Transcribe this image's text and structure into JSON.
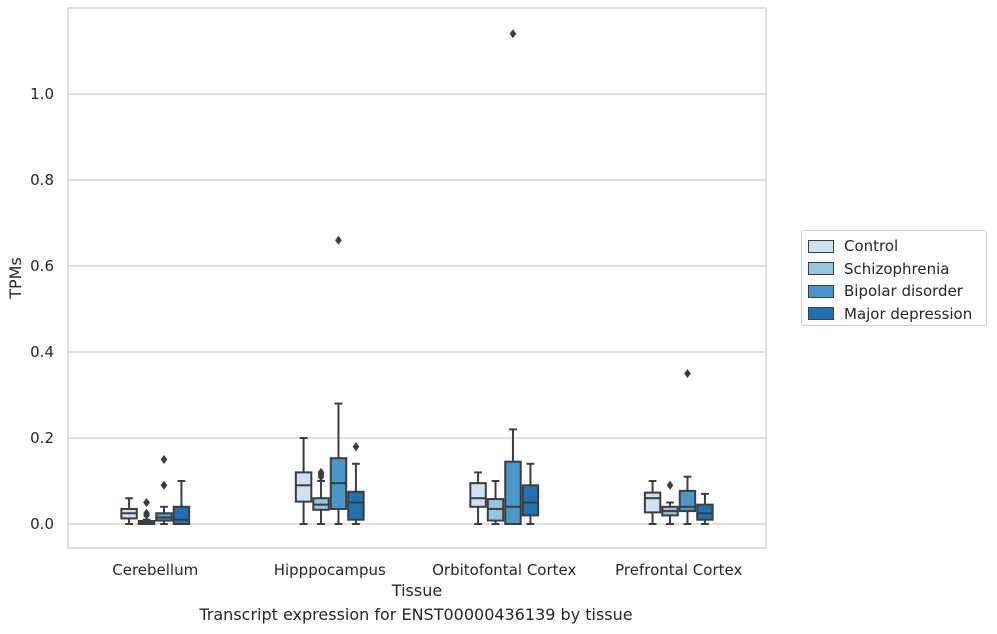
{
  "chart_data": {
    "type": "box",
    "caption": "Transcript expression for ENST00000436139 by tissue",
    "xlabel": "Tissue",
    "ylabel": "TPMs",
    "ylim": [
      -0.056,
      1.19
    ],
    "yticks": [
      0.0,
      0.2,
      0.4,
      0.6,
      0.8,
      1.0
    ],
    "ytick_labels": [
      "0.0",
      "0.2",
      "0.4",
      "0.6",
      "0.8",
      "1.0"
    ],
    "categories": [
      "Cerebellum",
      "Hipppocampus",
      "Orbitofontal Cortex",
      "Prefrontal Cortex"
    ],
    "grid": "horizontal",
    "legend_placement": "right",
    "series": [
      {
        "name": "Control",
        "color": "#d0e1f2",
        "boxes": [
          {
            "min": 0.0,
            "q1": 0.013,
            "median": 0.025,
            "q3": 0.035,
            "max": 0.06,
            "outliers": []
          },
          {
            "min": 0.0,
            "q1": 0.052,
            "median": 0.09,
            "q3": 0.12,
            "max": 0.2,
            "outliers": []
          },
          {
            "min": 0.0,
            "q1": 0.04,
            "median": 0.06,
            "q3": 0.095,
            "max": 0.12,
            "outliers": []
          },
          {
            "min": 0.0,
            "q1": 0.027,
            "median": 0.06,
            "q3": 0.073,
            "max": 0.1,
            "outliers": []
          }
        ]
      },
      {
        "name": "Schizophrenia",
        "color": "#94c4df",
        "boxes": [
          {
            "min": 0.0,
            "q1": 0.0,
            "median": 0.003,
            "q3": 0.007,
            "max": 0.01,
            "outliers": [
              0.05,
              0.025,
              0.02
            ]
          },
          {
            "min": 0.0,
            "q1": 0.033,
            "median": 0.045,
            "q3": 0.06,
            "max": 0.1,
            "outliers": [
              0.12,
              0.115,
              0.11
            ]
          },
          {
            "min": 0.0,
            "q1": 0.008,
            "median": 0.035,
            "q3": 0.058,
            "max": 0.1,
            "outliers": []
          },
          {
            "min": 0.0,
            "q1": 0.02,
            "median": 0.03,
            "q3": 0.04,
            "max": 0.05,
            "outliers": [
              0.09
            ]
          }
        ]
      },
      {
        "name": "Bipolar disorder",
        "color": "#4a98c9",
        "boxes": [
          {
            "min": 0.0,
            "q1": 0.008,
            "median": 0.015,
            "q3": 0.025,
            "max": 0.04,
            "outliers": [
              0.15,
              0.09
            ]
          },
          {
            "min": 0.0,
            "q1": 0.035,
            "median": 0.095,
            "q3": 0.153,
            "max": 0.28,
            "outliers": [
              0.66
            ]
          },
          {
            "min": 0.0,
            "q1": 0.0,
            "median": 0.04,
            "q3": 0.145,
            "max": 0.22,
            "outliers": [
              1.14
            ]
          },
          {
            "min": 0.0,
            "q1": 0.03,
            "median": 0.04,
            "q3": 0.077,
            "max": 0.11,
            "outliers": [
              0.35
            ]
          }
        ]
      },
      {
        "name": "Major depression",
        "color": "#2070b4",
        "boxes": [
          {
            "min": 0.0,
            "q1": 0.0,
            "median": 0.01,
            "q3": 0.04,
            "max": 0.1,
            "outliers": []
          },
          {
            "min": 0.0,
            "q1": 0.01,
            "median": 0.05,
            "q3": 0.075,
            "max": 0.14,
            "outliers": [
              0.18
            ]
          },
          {
            "min": 0.0,
            "q1": 0.02,
            "median": 0.05,
            "q3": 0.09,
            "max": 0.14,
            "outliers": []
          },
          {
            "min": 0.0,
            "q1": 0.01,
            "median": 0.025,
            "q3": 0.045,
            "max": 0.07,
            "outliers": []
          }
        ]
      }
    ]
  }
}
